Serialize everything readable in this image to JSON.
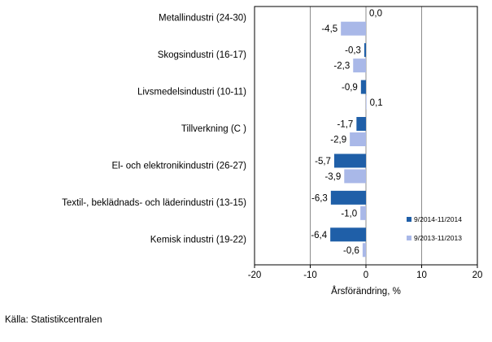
{
  "chart_data": {
    "type": "bar",
    "orientation": "horizontal",
    "categories": [
      "Metallindustri (24-30)",
      "Skogsindustri (16-17)",
      "Livsmedelsindustri (10-11)",
      "Tillverkning (C )",
      "El- och elektronikindustri (26-27)",
      "Textil-, beklädnads- och läderindustri (13-15)",
      "Kemisk industri (19-22)"
    ],
    "series": [
      {
        "name": "9/2014-11/2014",
        "color": "#1f5fa8",
        "values": [
          0.0,
          -0.3,
          -0.9,
          -1.7,
          -5.7,
          -6.3,
          -6.4
        ],
        "labels": [
          "0,0",
          "-0,3",
          "-0,9",
          "-1,7",
          "-5,7",
          "-6,3",
          "-6,4"
        ]
      },
      {
        "name": "9/2013-11/2013",
        "color": "#a9b8e8",
        "values": [
          -4.5,
          -2.3,
          0.1,
          -2.9,
          -3.9,
          -1.0,
          -0.6
        ],
        "labels": [
          "-4,5",
          "-2,3",
          "0,1",
          "-2,9",
          "-3,9",
          "-1,0",
          "-0,6"
        ]
      }
    ],
    "xlim": [
      -20,
      20
    ],
    "xticks": [
      -20,
      -10,
      0,
      10,
      20
    ],
    "xtick_labels": [
      "-20",
      "-10",
      "0",
      "10",
      "20"
    ],
    "xlabel": "Årsförändring, %",
    "grid": "vertical",
    "legend_position": "bottom-right"
  },
  "source": "Källa: Statistikcentralen"
}
